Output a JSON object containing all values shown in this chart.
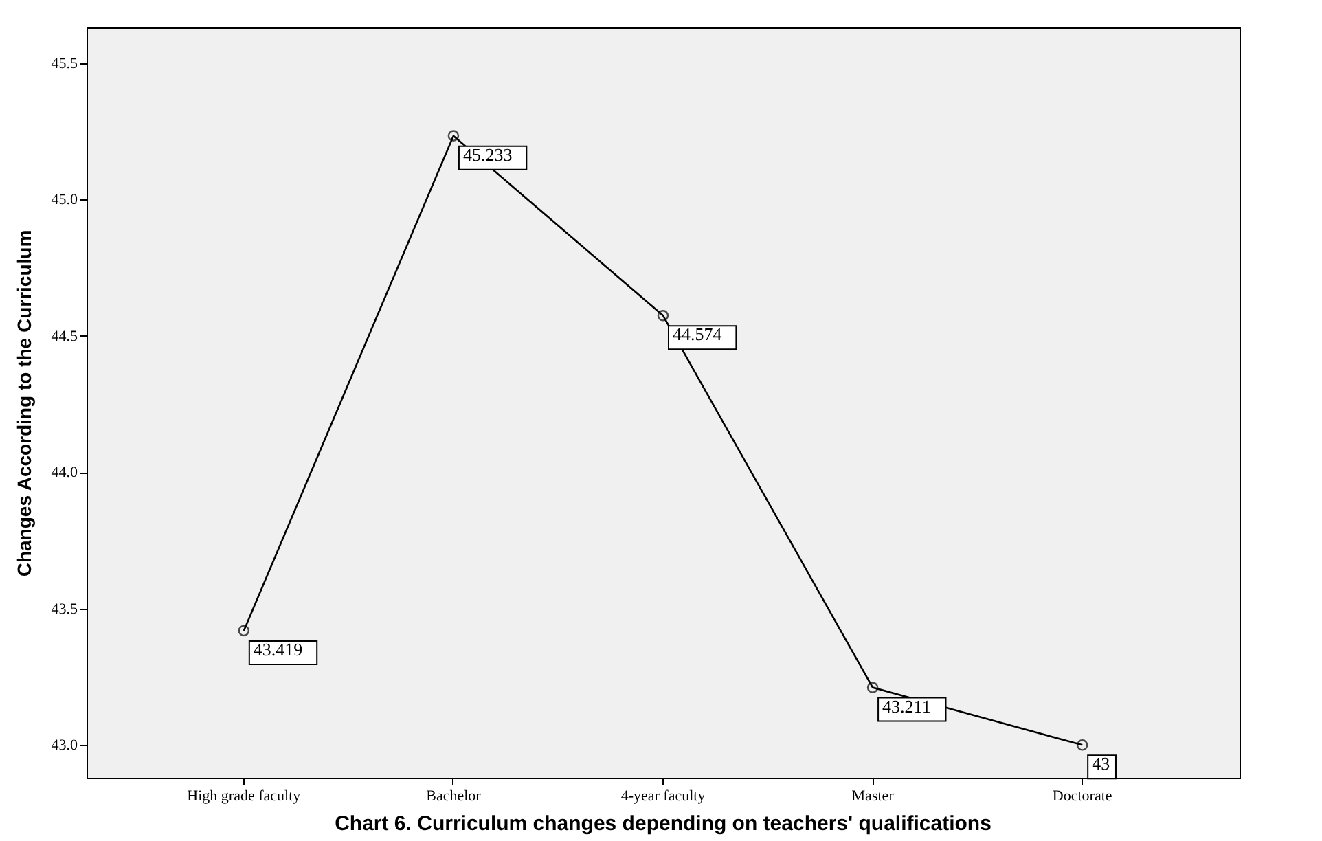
{
  "chart_data": {
    "type": "line",
    "title": "Chart 6. Curriculum changes depending on teachers' qualifications",
    "ylabel": "Changes According to the Curriculum",
    "categories": [
      "High grade faculty",
      "Bachelor",
      "4-year faculty",
      "Master",
      "Doctorate"
    ],
    "values": [
      43.419,
      45.233,
      44.574,
      43.211,
      43
    ],
    "color": "#000000",
    "marker": "circle",
    "line_style": "solid",
    "data_labels": true,
    "grid": false,
    "ylim": [
      42.88,
      45.63
    ],
    "yticks": [
      {
        "value": 43,
        "label": "43.0"
      },
      {
        "value": 43.5,
        "label": "43.5"
      },
      {
        "value": 44,
        "label": "44.0"
      },
      {
        "value": 44.5,
        "label": "44.5"
      },
      {
        "value": 45,
        "label": "45.0"
      },
      {
        "value": 45.5,
        "label": "45.5"
      }
    ]
  }
}
